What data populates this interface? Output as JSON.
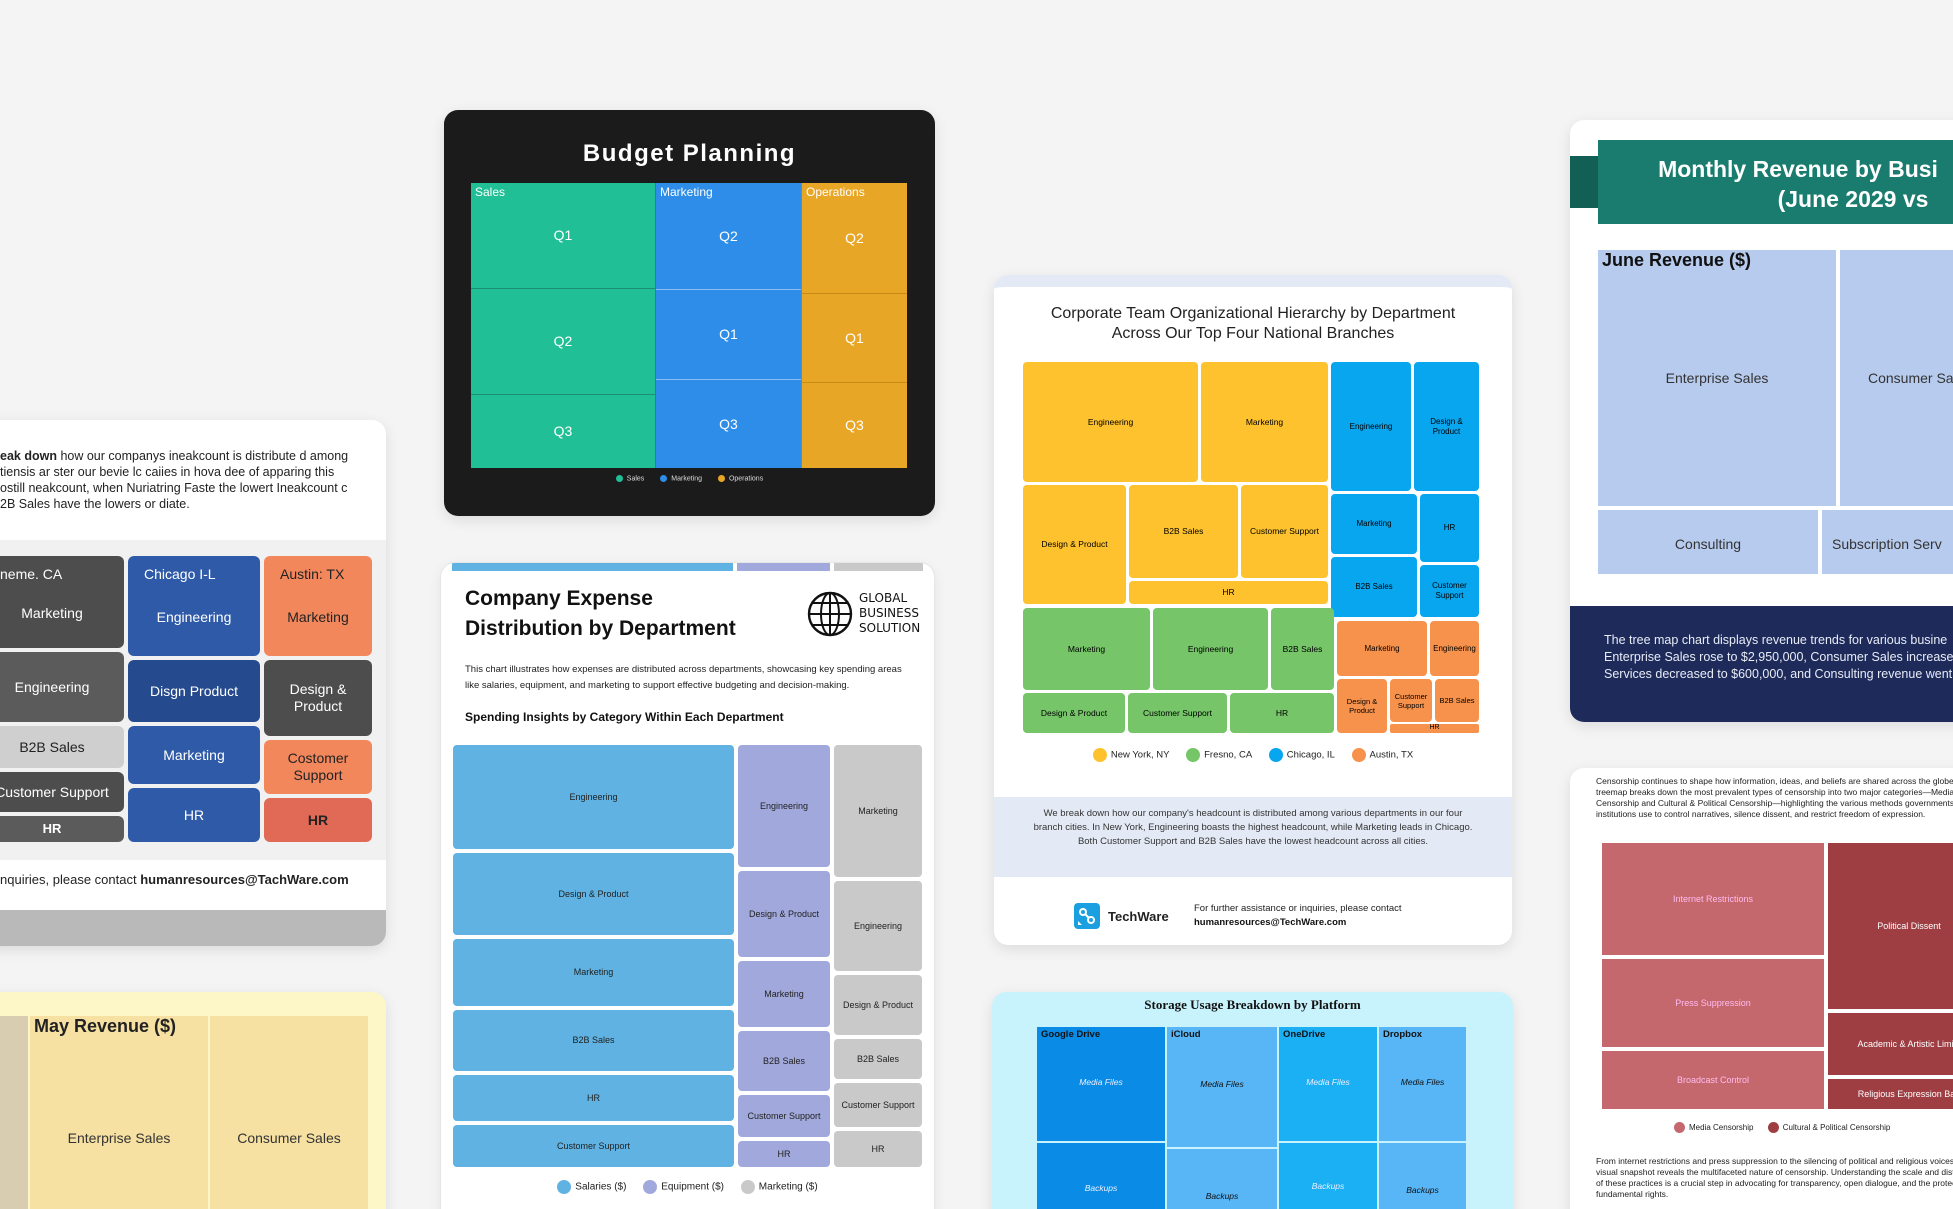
{
  "budget_card": {
    "title": "Budget Planning",
    "groups": {
      "sales": "Sales",
      "marketing": "Marketing",
      "operations": "Operations"
    },
    "cells": {
      "s1": "Q1",
      "s2": "Q2",
      "s3": "Q3",
      "m1": "Q2",
      "m2": "Q1",
      "m3": "Q3",
      "o1": "Q2",
      "o2": "Q1",
      "o3": "Q3"
    },
    "legend": [
      "Sales",
      "Marketing",
      "Operations"
    ],
    "colors": {
      "sales": "#21bf96",
      "marketing": "#2d8de8",
      "operations": "#e8a626",
      "background": "#1b1b1b"
    }
  },
  "expense_card": {
    "title_line1": "Company Expense",
    "title_line2": "Distribution by Department",
    "logo_line1": "GLOBAL",
    "logo_line2": "BUSINESS",
    "logo_line3": "SOLUTION",
    "description": "This chart illustrates how expenses are distributed across departments, showcasing key spending areas like salaries, equipment, and marketing to support effective budgeting and decision-making.",
    "subtitle": "Spending Insights by Category Within Each Department",
    "salaries": [
      "Engineering",
      "Design & Product",
      "Marketing",
      "B2B Sales",
      "HR",
      "Customer Support"
    ],
    "equipment": [
      "Engineering",
      "Design & Product",
      "Marketing",
      "B2B Sales",
      "Customer Support",
      "HR"
    ],
    "marketing": [
      "Marketing",
      "Engineering",
      "Design & Product",
      "B2B Sales",
      "Customer Support",
      "HR"
    ],
    "legend": [
      "Salaries ($)",
      "Equipment ($)",
      "Marketing ($)"
    ],
    "colors": {
      "salaries": "#5fb2e2",
      "equipment": "#a1a9dc",
      "marketing": "#c9c9c9"
    }
  },
  "hierarchy_card": {
    "title": "Corporate Team Organizational Hierarchy by Department Across Our Top Four National Branches",
    "ny": [
      "Engineering",
      "Marketing",
      "Design & Product",
      "B2B Sales",
      "Customer Support",
      "HR"
    ],
    "chicago": [
      "Engineering",
      "Design & Product",
      "Marketing",
      "HR",
      "B2B Sales",
      "Customer Support"
    ],
    "fresno": [
      "Marketing",
      "Engineering",
      "B2B Sales",
      "Design & Product",
      "Customer Support",
      "HR"
    ],
    "austin": [
      "Marketing",
      "Engineering",
      "Design & Product",
      "Customer Support",
      "B2B Sales",
      "HR"
    ],
    "legend": [
      "New York, NY",
      "Fresno, CA",
      "Chicago, IL",
      "Austin, TX"
    ],
    "description": "We break down how our company's headcount is distributed among various departments in our four branch cities. In New York, Engineering boasts the highest headcount, while Marketing leads in Chicago. Both Customer Support and B2B Sales have the lowest headcount across all cities.",
    "brand": "TechWare",
    "contact_text": "For further assistance or inquiries, please contact",
    "contact_email": "humanresources@TechWare.com",
    "colors": {
      "ny": "#fdc22e",
      "chicago": "#08a6ef",
      "fresno": "#76c569",
      "austin": "#f7924c"
    }
  },
  "left_card": {
    "intro_bold": "eak down",
    "intro_rest": " how our companys ineakcount is distribute d among",
    "intro_line2": "tiensis ar ster our bevie lc caiies in hova dee of apparing this",
    "intro_line3": "ostill neakcount, when Nuriatring Faste the lowert Ineakcount c",
    "intro_line4": "2B Sales have the lowers or diate.",
    "col1_header": "neme. CA",
    "col1": [
      "Marketing",
      "Engineering",
      "B2B Sales",
      "Customer Support",
      "HR"
    ],
    "col2_header": "Chicago I-L",
    "col2": [
      "Engineering",
      "Disgn Product",
      "Marketing",
      "HR"
    ],
    "col3_header": "Austin: TX",
    "col3": [
      "Marketing",
      "Design & Product",
      "Costomer Support",
      "HR"
    ],
    "contact_text": "nquiries, please contact ",
    "contact_email": "humanresources@TachWare.com"
  },
  "may_card": {
    "title": "May Revenue ($)",
    "cells": [
      "Enterprise Sales",
      "Consumer Sales"
    ]
  },
  "storage_card": {
    "title": "Storage Usage Breakdown by Platform",
    "platforms": [
      "Google Drive",
      "iCloud",
      "OneDrive",
      "Dropbox"
    ],
    "top": [
      "Media Files",
      "Media Files",
      "Media Files",
      "Media Files"
    ],
    "bottom": [
      "Backups",
      "Backups",
      "Backups",
      "Backups"
    ]
  },
  "revenue_card": {
    "title_line1": "Monthly Revenue by Busi",
    "title_line2": "(June 2029 vs",
    "section": "June Revenue ($)",
    "cells": [
      "Enterprise Sales",
      "Consumer Sa",
      "Consulting",
      "Subscription Serv"
    ],
    "footer_line1": "The tree map chart displays revenue trends for various busine",
    "footer_line2": "Enterprise Sales rose to $2,950,000, Consumer Sales increased",
    "footer_line3": "Services decreased to $600,000, and Consulting revenue went"
  },
  "censor_card": {
    "intro": "Censorship continues to shape how information, ideas, and beliefs are shared across the globe. This treemap breaks down the most prevalent types of censorship into two major categories—Media Censorship and Cultural & Political Censorship—highlighting the various methods governments and institutions use to control narratives, silence dissent, and restrict freedom of expression.",
    "cells": [
      "Internet Restrictions",
      "Press Suppression",
      "Broadcast Control",
      "Political Dissent",
      "Academic & Artistic Limits",
      "Religious Expression Ban"
    ],
    "legend": [
      "Media Censorship",
      "Cultural & Political Censorship"
    ],
    "outro": "From internet restrictions and press suppression to the silencing of political and religious voices, this visual snapshot reveals the multifaceted nature of censorship. Understanding the scale and distribution of these practices is a crucial step in advocating for transparency, open dialogue, and the protection of fundamental rights."
  }
}
